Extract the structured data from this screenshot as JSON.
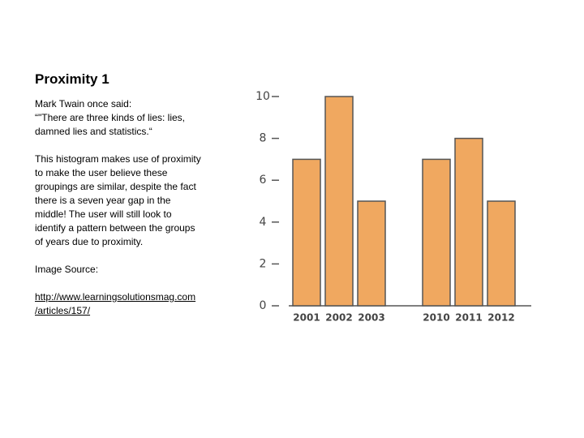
{
  "slide": {
    "title": "Proximity 1",
    "paragraphs": [
      [
        "Mark Twain once said:",
        "“\"There are three kinds of lies: lies,",
        "damned lies and statistics.“"
      ],
      [
        "This histogram makes use of proximity",
        "to make the user believe these",
        "groupings are similar, despite the fact",
        "there is a seven year gap in the",
        "middle!  The user will still look to",
        "identify a pattern between the groups",
        "of years due to proximity."
      ],
      [
        "Image Source:"
      ]
    ],
    "link": [
      "http://www.learningsolutionsmag.com",
      "/articles/157/"
    ]
  },
  "chart_data": {
    "type": "bar",
    "categories": [
      "2001",
      "2002",
      "2003",
      null,
      "2010",
      "2011",
      "2012"
    ],
    "values": [
      7,
      10,
      5,
      null,
      7,
      8,
      5
    ],
    "color": "#f0a860",
    "ylim": [
      0,
      10
    ],
    "yticks": [
      0,
      2,
      4,
      6,
      8,
      10
    ]
  }
}
